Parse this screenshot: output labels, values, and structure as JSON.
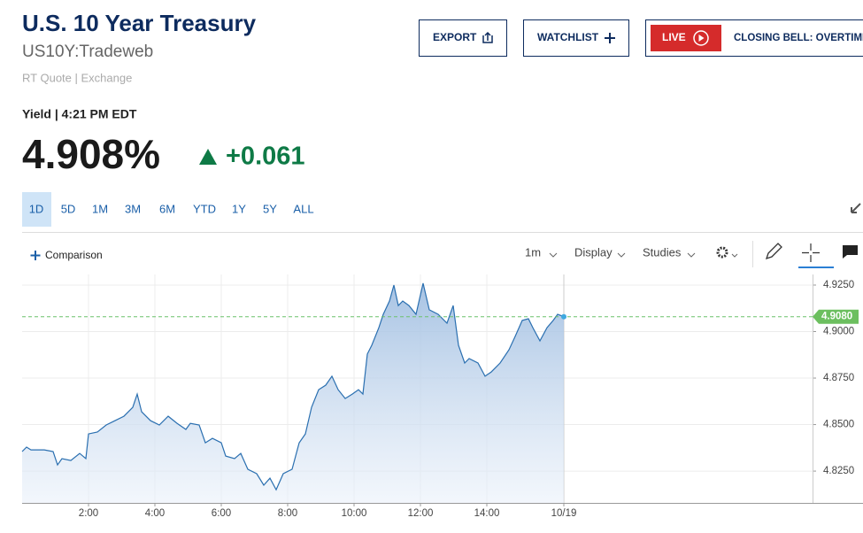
{
  "header": {
    "title": "U.S. 10 Year Treasury",
    "symbol": "US10Y:Tradeweb",
    "source": "RT Quote | Exchange"
  },
  "buttons": {
    "export": "EXPORT",
    "watchlist": "WATCHLIST",
    "live": "LIVE",
    "live_banner": "CLOSING BELL: OVERTIME"
  },
  "quote": {
    "label": "Yield | 4:21 PM EDT",
    "price": "4.908%",
    "change": "+0.061"
  },
  "ranges": [
    "1D",
    "5D",
    "1M",
    "3M",
    "6M",
    "YTD",
    "1Y",
    "5Y",
    "ALL"
  ],
  "selected_range": 0,
  "toolbar": {
    "comparison": "Comparison",
    "interval": "1m",
    "display": "Display",
    "studies": "Studies"
  },
  "chart": {
    "type": "area",
    "color": "#2a6fb0",
    "grid": true,
    "x": [
      0,
      0.133,
      0.267,
      0.667,
      0.933,
      1.067,
      1.2,
      1.467,
      1.733,
      1.92,
      2,
      2.267,
      2.533,
      2.8,
      3.067,
      3.333,
      3.467,
      3.6,
      3.867,
      4.133,
      4.4,
      4.667,
      4.933,
      5.067,
      5.333,
      5.52,
      5.733,
      6,
      6.133,
      6.4,
      6.587,
      6.8,
      7.067,
      7.28,
      7.467,
      7.653,
      7.867,
      8.133,
      8.347,
      8.533,
      8.72,
      8.933,
      9.147,
      9.333,
      9.52,
      9.733,
      9.947,
      10.133,
      10.267,
      10.4,
      10.533,
      10.747,
      10.88,
      11.067,
      11.2,
      11.333,
      11.467,
      11.653,
      11.867,
      12.08,
      12.267,
      12.533,
      12.8,
      12.987,
      13.147,
      13.333,
      13.467,
      13.733,
      13.947,
      14.133,
      14.4,
      14.667,
      14.853,
      15.067,
      15.253,
      15.387,
      15.6,
      15.813,
      16,
      16.133,
      16.32
    ],
    "values": [
      4.8355,
      4.8379,
      4.8364,
      4.8364,
      4.8355,
      4.8283,
      4.8317,
      4.8307,
      4.8345,
      4.8317,
      4.845,
      4.846,
      4.8498,
      4.8521,
      4.8545,
      4.8593,
      4.8664,
      4.8569,
      4.8521,
      4.8498,
      4.8545,
      4.8507,
      4.8474,
      4.8507,
      4.8498,
      4.8402,
      4.8426,
      4.8402,
      4.8331,
      4.8317,
      4.8345,
      4.826,
      4.8236,
      4.8174,
      4.8212,
      4.815,
      4.8236,
      4.826,
      4.8402,
      4.845,
      4.8593,
      4.8688,
      4.8712,
      4.876,
      4.8688,
      4.864,
      4.8664,
      4.8688,
      4.8664,
      4.8879,
      4.8926,
      4.9021,
      4.9093,
      4.9164,
      4.925,
      4.914,
      4.9164,
      4.914,
      4.9093,
      4.926,
      4.9117,
      4.9093,
      4.9045,
      4.914,
      4.8926,
      4.8831,
      4.8855,
      4.8831,
      4.876,
      4.8783,
      4.8831,
      4.8902,
      4.8974,
      4.906,
      4.9069,
      4.9021,
      4.895,
      4.9021,
      4.906,
      4.9093,
      4.908
    ],
    "xlim": [
      0,
      23.813
    ],
    "ylim": [
      4.8079,
      4.9307
    ],
    "xticks": [
      {
        "value": 2,
        "label": "2:00"
      },
      {
        "value": 4,
        "label": "4:00"
      },
      {
        "value": 6,
        "label": "6:00"
      },
      {
        "value": 8,
        "label": "8:00"
      },
      {
        "value": 10,
        "label": "10:00"
      },
      {
        "value": 12,
        "label": "12:00"
      },
      {
        "value": 14,
        "label": "14:00"
      },
      {
        "value": 16.32,
        "label": "10/19"
      }
    ],
    "yticks": [
      {
        "value": 4.825,
        "label": "4.8250"
      },
      {
        "value": 4.85,
        "label": "4.8500"
      },
      {
        "value": 4.875,
        "label": "4.8750"
      },
      {
        "value": 4.9,
        "label": "4.9000"
      },
      {
        "value": 4.925,
        "label": "4.9250"
      }
    ],
    "last_value": 4.908,
    "last_label": "4.9080"
  }
}
